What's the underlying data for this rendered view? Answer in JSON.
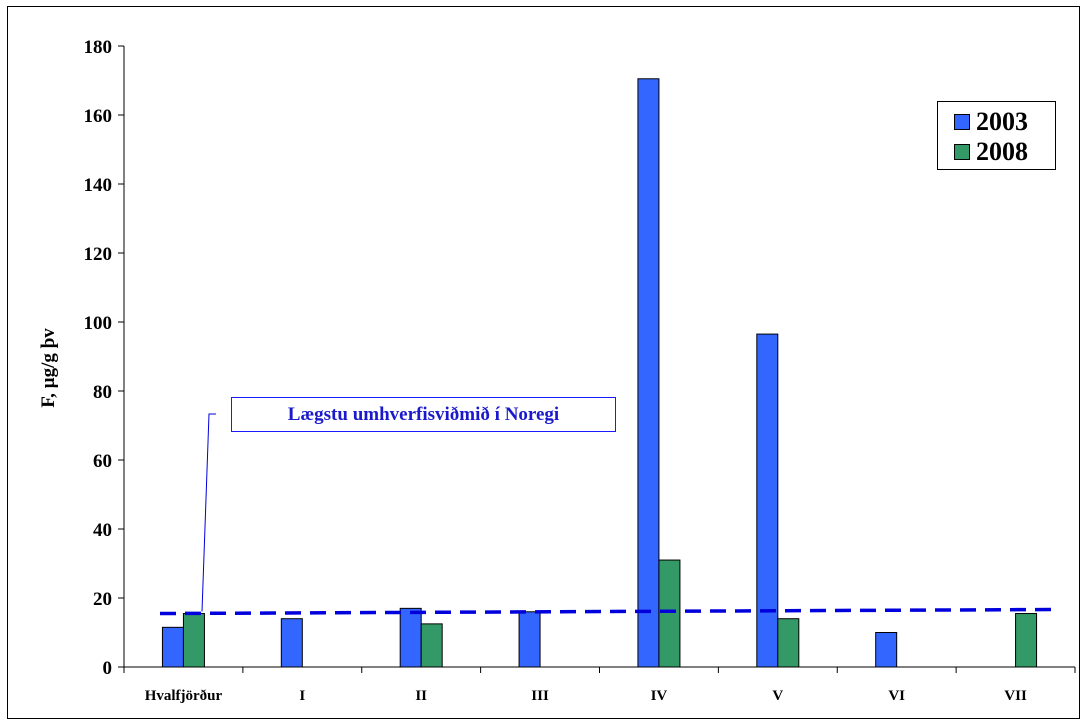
{
  "chart_data": {
    "type": "bar",
    "ylabel": "F, µg/g þv",
    "ylim": [
      0,
      180
    ],
    "yticks": [
      0,
      20,
      40,
      60,
      80,
      100,
      120,
      140,
      160,
      180
    ],
    "categories": [
      "Hvalfjörður",
      "I",
      "II",
      "III",
      "IV",
      "V",
      "VI",
      "VII"
    ],
    "series": [
      {
        "name": "2003",
        "color": "#3366ff",
        "values": [
          11.5,
          14,
          17,
          16,
          170.5,
          96.5,
          10,
          null
        ]
      },
      {
        "name": "2008",
        "color": "#339966",
        "values": [
          15.5,
          null,
          12.5,
          null,
          31,
          14,
          null,
          15.5
        ]
      }
    ],
    "reference_line": {
      "label": "Lægstu umhverfisviðmið í Noregi",
      "value": 15.5,
      "color": "#0000dd",
      "style": "dashed"
    },
    "legend_position": "top-right",
    "grid": false
  }
}
